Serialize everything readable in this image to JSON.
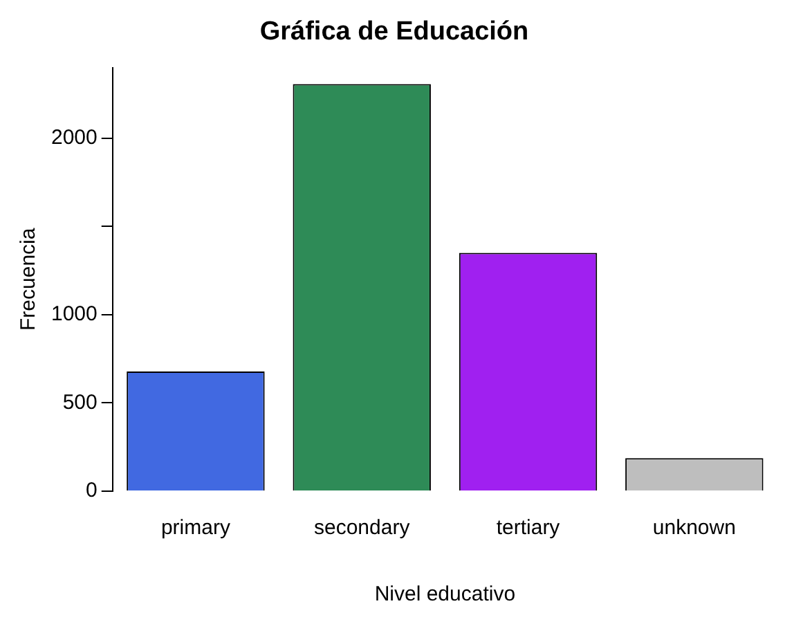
{
  "chart_data": {
    "type": "bar",
    "title": "Gráfica de Educación",
    "xlabel": "Nivel educativo",
    "ylabel": "Frecuencia",
    "categories": [
      "primary",
      "secondary",
      "tertiary",
      "unknown"
    ],
    "values": [
      678,
      2306,
      1350,
      187
    ],
    "colors": [
      "#4169e1",
      "#2e8b57",
      "#a020f0",
      "#bebebe"
    ],
    "ylim": [
      0,
      2400
    ],
    "yticks": [
      0,
      500,
      1000,
      {
        "value": 1500,
        "label": null
      },
      2000
    ],
    "grid": false,
    "legend": false
  }
}
